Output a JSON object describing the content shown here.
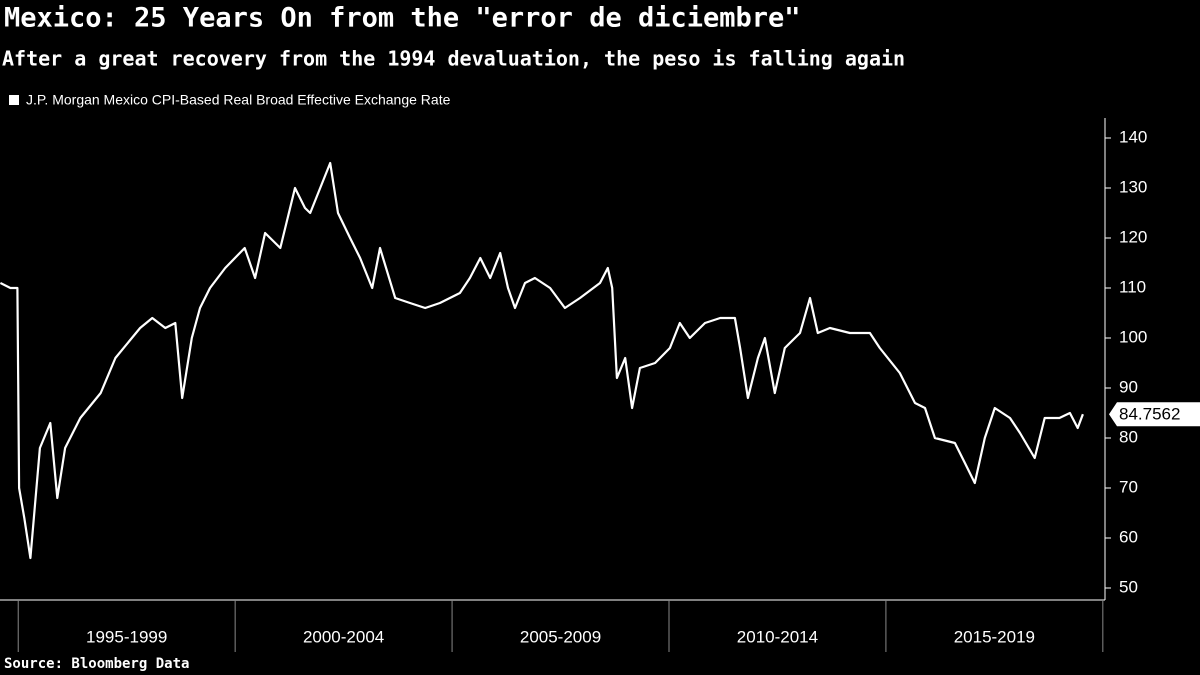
{
  "chart_data": {
    "type": "line",
    "title": "Mexico: 25 Years On from the \"error de diciembre\"",
    "subtitle": "After a great recovery from the 1994 devaluation, the peso is falling again",
    "source": "Source: Bloomberg Data",
    "xlim": [
      1994.58,
      2020.05
    ],
    "ylim": [
      48,
      144
    ],
    "yticks": [
      50,
      60,
      70,
      80,
      90,
      100,
      110,
      120,
      130,
      140
    ],
    "xticks": [
      {
        "value": 1997.5,
        "label": "1995-1999"
      },
      {
        "value": 2002.5,
        "label": "2000-2004"
      },
      {
        "value": 2007.5,
        "label": "2005-2009"
      },
      {
        "value": 2012.5,
        "label": "2010-2014"
      },
      {
        "value": 2017.5,
        "label": "2015-2019"
      }
    ],
    "xdividers": [
      1995,
      2000,
      2005,
      2010,
      2015,
      2020
    ],
    "legend": "top-left",
    "series": [
      {
        "name": "J.P. Morgan Mexico CPI-Based Real Broad Effective Exchange Rate",
        "color": "#ffffff",
        "x": [
          1994.59,
          1994.82,
          1994.98,
          1995.02,
          1995.14,
          1995.28,
          1995.5,
          1995.74,
          1995.9,
          1996.08,
          1996.43,
          1996.9,
          1997.24,
          1997.81,
          1998.09,
          1998.39,
          1998.62,
          1998.78,
          1999.0,
          1999.19,
          1999.42,
          1999.77,
          2000.22,
          2000.46,
          2000.69,
          2001.04,
          2001.38,
          2001.61,
          2001.73,
          2001.96,
          2002.19,
          2002.37,
          2002.65,
          2002.88,
          2003.16,
          2003.34,
          2003.69,
          2004.03,
          2004.38,
          2004.72,
          2005.18,
          2005.41,
          2005.65,
          2005.88,
          2006.11,
          2006.29,
          2006.45,
          2006.68,
          2006.91,
          2007.26,
          2007.6,
          2007.95,
          2008.41,
          2008.59,
          2008.69,
          2008.8,
          2008.99,
          2009.15,
          2009.33,
          2009.68,
          2010.02,
          2010.25,
          2010.48,
          2010.83,
          2011.18,
          2011.52,
          2011.64,
          2011.82,
          2012.05,
          2012.21,
          2012.44,
          2012.67,
          2013.02,
          2013.25,
          2013.43,
          2013.71,
          2014.17,
          2014.63,
          2014.86,
          2015.32,
          2015.67,
          2015.9,
          2016.13,
          2016.59,
          2016.82,
          2017.05,
          2017.28,
          2017.51,
          2017.86,
          2018.09,
          2018.43,
          2018.66,
          2019.0,
          2019.24,
          2019.42,
          2019.54
        ],
        "values": [
          111,
          110,
          110,
          70,
          64,
          56,
          78,
          83,
          68,
          78,
          84,
          89,
          96,
          102,
          104,
          102,
          103,
          88,
          100,
          106,
          110,
          114,
          118,
          112,
          121,
          118,
          130,
          126,
          125,
          130,
          135,
          125,
          120,
          116,
          110,
          118,
          108,
          107,
          106,
          107,
          109,
          112,
          116,
          112,
          117,
          110,
          106,
          111,
          112,
          110,
          106,
          108,
          111,
          114,
          110,
          92,
          96,
          86,
          94,
          95,
          98,
          103,
          100,
          103,
          104,
          104,
          98,
          88,
          96,
          100,
          89,
          98,
          101,
          108,
          101,
          102,
          101,
          101,
          98,
          93,
          87,
          86,
          80,
          79,
          75,
          71,
          80,
          86,
          84,
          81,
          76,
          84,
          84,
          85,
          82,
          84.7562
        ]
      }
    ]
  }
}
